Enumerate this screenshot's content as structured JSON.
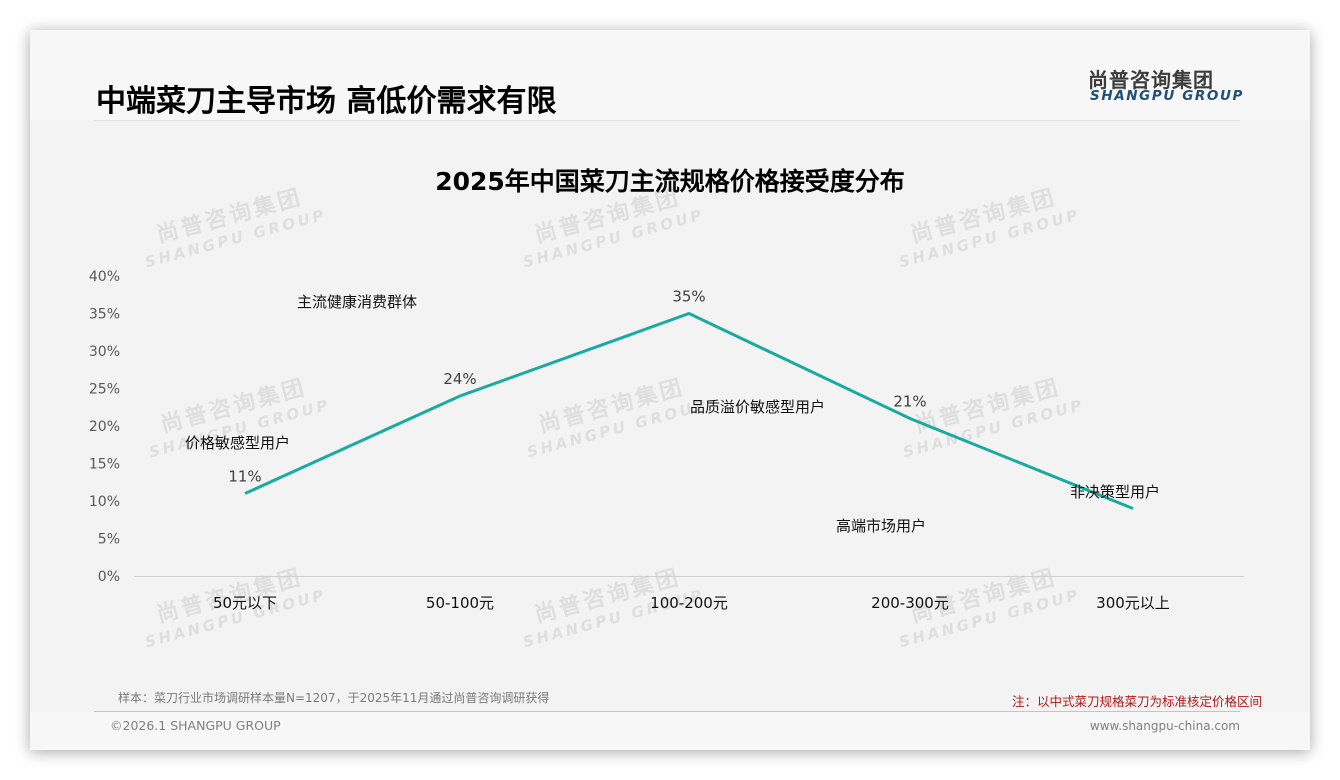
{
  "header": {
    "title": "中端菜刀主导市场 高低价需求有限",
    "logo_cn": "尚普咨询集团",
    "logo_en": "SHANGPU GROUP"
  },
  "watermark": {
    "cn": "尚普咨询集团",
    "en": "SHANGPU GROUP"
  },
  "chart_data": {
    "type": "line",
    "title": "2025年中国菜刀主流规格价格接受度分布",
    "categories": [
      "50元以下",
      "50-100元",
      "100-200元",
      "200-300元",
      "300元以上"
    ],
    "series": [
      {
        "name": "价格接受度",
        "values": [
          11,
          24,
          35,
          21,
          9
        ],
        "color": "#1aaba0"
      }
    ],
    "data_labels": [
      "11%",
      "24%",
      "35%",
      "21%",
      ""
    ],
    "annotations": [
      {
        "text": "价格敏感型用户",
        "category": "50元以下"
      },
      {
        "text": "主流健康消费群体",
        "category": "50-100元"
      },
      {
        "text": "品质溢价敏感型用户",
        "category": "100-200元"
      },
      {
        "text": "高端市场用户",
        "category": "200-300元"
      },
      {
        "text": "非决策型用户",
        "category": "300元以上"
      }
    ],
    "xlabel": "",
    "ylabel": "",
    "ylim": [
      0,
      40
    ],
    "yticks": [
      "0%",
      "5%",
      "10%",
      "15%",
      "20%",
      "25%",
      "30%",
      "35%",
      "40%"
    ],
    "grid": false,
    "legend": "none"
  },
  "footer": {
    "sample_note": "样本：菜刀行业市场调研样本量N=1207，于2025年11月通过尚普咨询调研获得",
    "note": "注：以中式菜刀规格菜刀为标准核定价格区间",
    "copyright": "©2026.1 SHANGPU GROUP",
    "website": "www.shangpu-china.com"
  }
}
